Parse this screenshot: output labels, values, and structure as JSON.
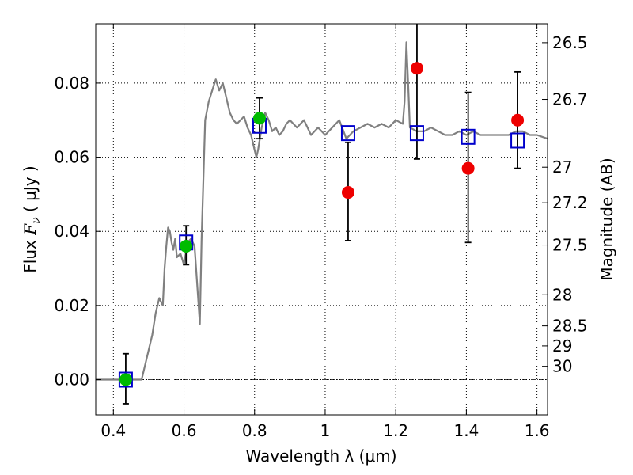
{
  "chart_data": {
    "type": "scatter",
    "xlabel": "Wavelength  λ (μm)",
    "ylabel_prefix": "Flux  ",
    "ylabel_symbol": "F",
    "ylabel_subscript": "ν",
    "ylabel_suffix": "  ( μJy )",
    "y2label": "Magnitude (AB)",
    "xlim": [
      0.35,
      1.63
    ],
    "ylim": [
      -0.0095,
      0.096
    ],
    "grid": true,
    "grid_style": "dotted",
    "zero_line": true,
    "x_ticks": [
      0.4,
      0.6,
      0.8,
      1.0,
      1.2,
      1.4,
      1.6
    ],
    "x_tick_labels": [
      "0.4",
      "0.6",
      "0.8",
      "1",
      "1.2",
      "1.4",
      "1.6"
    ],
    "y_ticks": [
      0.0,
      0.02,
      0.04,
      0.06,
      0.08
    ],
    "y_tick_labels": [
      "0.00",
      "0.02",
      "0.04",
      "0.06",
      "0.08"
    ],
    "y2_ticks": [
      {
        "flux": 0.0909,
        "label": "26.5"
      },
      {
        "flux": 0.0756,
        "label": "26.7"
      },
      {
        "flux": 0.0573,
        "label": "27"
      },
      {
        "flux": 0.0477,
        "label": "27.2"
      },
      {
        "flux": 0.0363,
        "label": "27.5"
      },
      {
        "flux": 0.0229,
        "label": "28"
      },
      {
        "flux": 0.0145,
        "label": "28.5"
      },
      {
        "flux": 0.0091,
        "label": "29"
      },
      {
        "flux": 0.0036,
        "label": "30"
      }
    ],
    "colors": {
      "model": "#808080",
      "synthetic": "#0000cc",
      "detections_green": "#00bb00",
      "detections_red": "#ee0000",
      "errorbar": "#000000"
    },
    "series": [
      {
        "name": "",
        "kind": "model_sed_line",
        "x": [
          0.35,
          0.47,
          0.48,
          0.5,
          0.51,
          0.52,
          0.53,
          0.54,
          0.545,
          0.55,
          0.555,
          0.56,
          0.565,
          0.57,
          0.575,
          0.58,
          0.59,
          0.6,
          0.61,
          0.62,
          0.63,
          0.64,
          0.645,
          0.65,
          0.66,
          0.67,
          0.68,
          0.69,
          0.7,
          0.71,
          0.72,
          0.73,
          0.74,
          0.75,
          0.76,
          0.77,
          0.78,
          0.79,
          0.8,
          0.805,
          0.81,
          0.82,
          0.83,
          0.84,
          0.85,
          0.86,
          0.87,
          0.88,
          0.89,
          0.9,
          0.92,
          0.94,
          0.96,
          0.98,
          1.0,
          1.02,
          1.04,
          1.06,
          1.08,
          1.1,
          1.12,
          1.14,
          1.16,
          1.18,
          1.2,
          1.22,
          1.225,
          1.23,
          1.235,
          1.24,
          1.26,
          1.28,
          1.3,
          1.32,
          1.34,
          1.36,
          1.38,
          1.4,
          1.42,
          1.44,
          1.46,
          1.48,
          1.5,
          1.52,
          1.54,
          1.56,
          1.58,
          1.6,
          1.63
        ],
        "y": [
          0.0,
          0.0,
          0.0,
          0.008,
          0.012,
          0.018,
          0.022,
          0.02,
          0.03,
          0.036,
          0.041,
          0.04,
          0.037,
          0.035,
          0.038,
          0.033,
          0.034,
          0.031,
          0.037,
          0.038,
          0.036,
          0.022,
          0.015,
          0.038,
          0.07,
          0.075,
          0.078,
          0.081,
          0.078,
          0.08,
          0.076,
          0.072,
          0.07,
          0.069,
          0.07,
          0.071,
          0.068,
          0.066,
          0.062,
          0.06,
          0.062,
          0.068,
          0.072,
          0.07,
          0.067,
          0.068,
          0.066,
          0.067,
          0.069,
          0.07,
          0.068,
          0.07,
          0.066,
          0.068,
          0.066,
          0.068,
          0.07,
          0.065,
          0.067,
          0.068,
          0.069,
          0.068,
          0.069,
          0.068,
          0.07,
          0.069,
          0.075,
          0.091,
          0.08,
          0.068,
          0.067,
          0.067,
          0.068,
          0.067,
          0.066,
          0.066,
          0.067,
          0.066,
          0.067,
          0.066,
          0.066,
          0.066,
          0.066,
          0.066,
          0.067,
          0.067,
          0.066,
          0.066,
          0.065
        ]
      },
      {
        "name": "",
        "kind": "synthetic_photometry",
        "marker": "open-square",
        "x": [
          0.435,
          0.606,
          0.814,
          1.065,
          1.26,
          1.405,
          1.545
        ],
        "y": [
          0.0,
          0.037,
          0.0685,
          0.0665,
          0.0665,
          0.0655,
          0.0645
        ]
      },
      {
        "name": "",
        "kind": "observed_photometry",
        "marker": "filled-circle",
        "points": [
          {
            "x": 0.435,
            "y": 0.0,
            "yerr_lo": 0.0065,
            "yerr_hi": 0.007,
            "color": "green"
          },
          {
            "x": 0.606,
            "y": 0.036,
            "yerr_lo": 0.005,
            "yerr_hi": 0.0055,
            "color": "green"
          },
          {
            "x": 0.814,
            "y": 0.0705,
            "yerr_lo": 0.0055,
            "yerr_hi": 0.0055,
            "color": "green"
          },
          {
            "x": 1.065,
            "y": 0.0505,
            "yerr_lo": 0.013,
            "yerr_hi": 0.0135,
            "color": "red"
          },
          {
            "x": 1.26,
            "y": 0.084,
            "yerr_lo": 0.0245,
            "yerr_hi": 0.013,
            "color": "red"
          },
          {
            "x": 1.405,
            "y": 0.057,
            "yerr_lo": 0.02,
            "yerr_hi": 0.0205,
            "color": "red"
          },
          {
            "x": 1.545,
            "y": 0.07,
            "yerr_lo": 0.013,
            "yerr_hi": 0.013,
            "color": "red"
          }
        ]
      }
    ]
  }
}
